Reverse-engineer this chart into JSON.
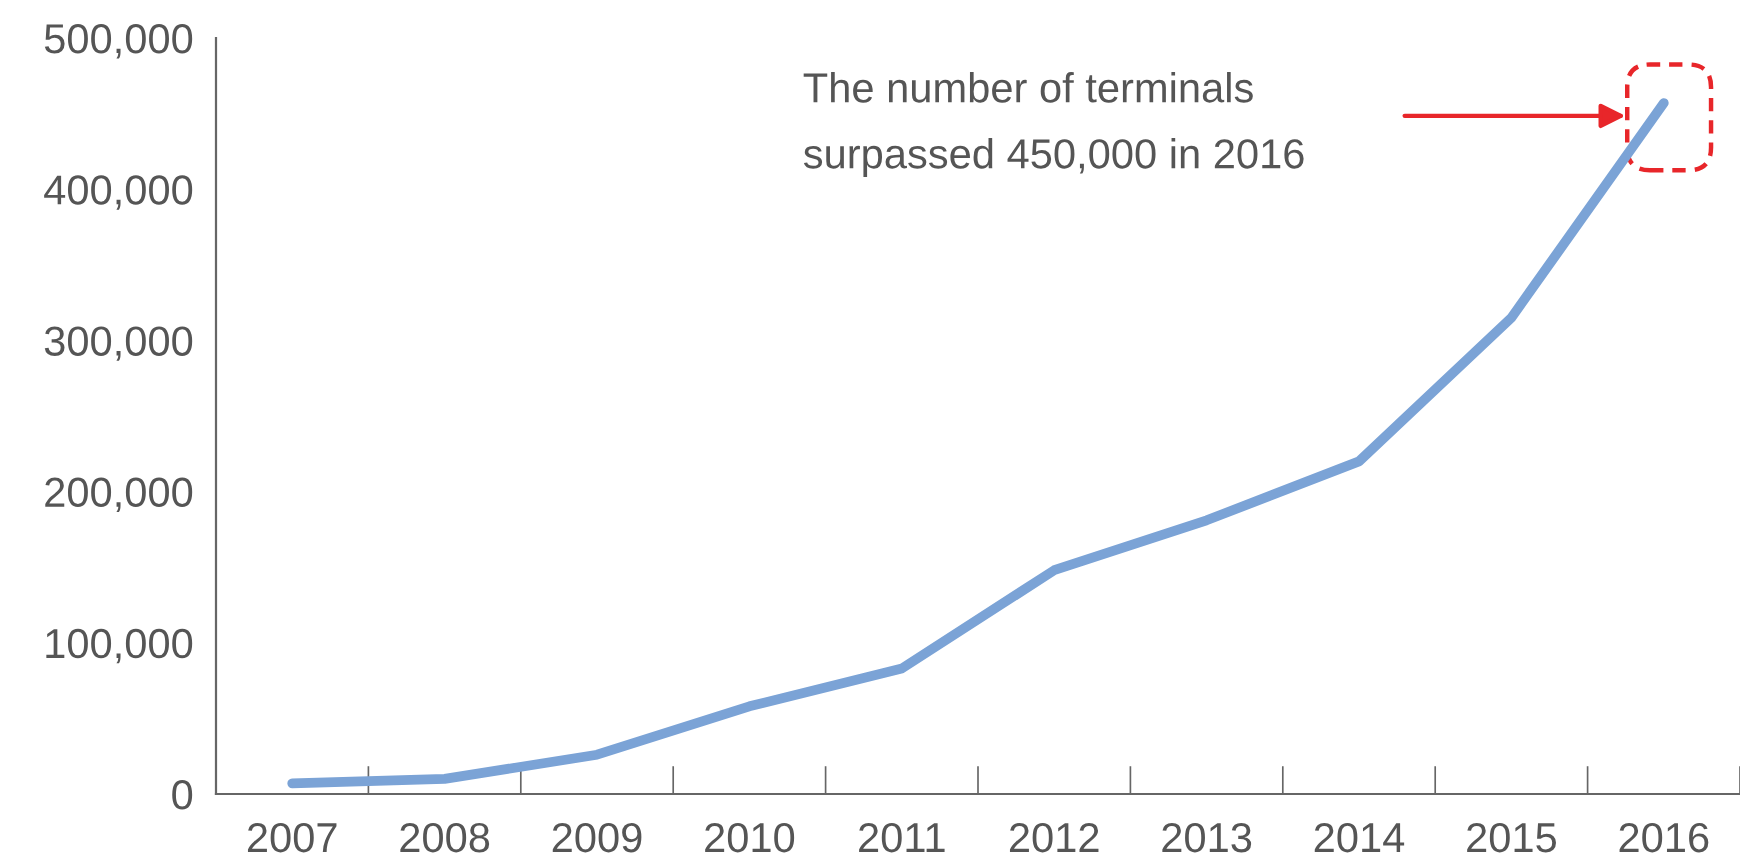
{
  "chart_data": {
    "type": "line",
    "categories": [
      "2007",
      "2008",
      "2009",
      "2010",
      "2011",
      "2012",
      "2013",
      "2014",
      "2015",
      "2016"
    ],
    "series": [
      {
        "color": "#7ba3d6",
        "values": [
          7000,
          10000,
          26000,
          58000,
          83000,
          148000,
          181000,
          220000,
          315000,
          457000
        ]
      }
    ],
    "ylim": [
      0,
      500000
    ],
    "yticks": [
      {
        "value": 0,
        "label": "0"
      },
      {
        "value": 100000,
        "label": "100,000"
      },
      {
        "value": 200000,
        "label": "200,000"
      },
      {
        "value": 300000,
        "label": "300,000"
      },
      {
        "value": 400000,
        "label": "400,000"
      },
      {
        "value": 500000,
        "label": "500,000"
      }
    ],
    "annotations": [
      "The number of terminals\nsurpassed 450,000 in 2016"
    ],
    "grid": false,
    "legend": false,
    "marker": "none",
    "line_style": "solid"
  }
}
